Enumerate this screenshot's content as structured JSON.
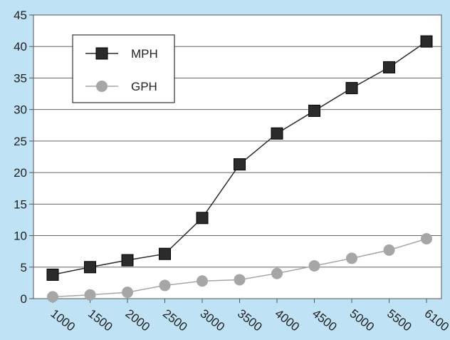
{
  "chart_data": {
    "type": "line",
    "x": [
      "1000",
      "1500",
      "2000",
      "2500",
      "3000",
      "3500",
      "4000",
      "4500",
      "5000",
      "5500",
      "6100"
    ],
    "series": [
      {
        "name": "MPH",
        "values": [
          3.8,
          5.0,
          6.1,
          7.1,
          12.8,
          21.3,
          26.2,
          29.8,
          33.4,
          36.7,
          40.8
        ],
        "color": "#2b2b2b",
        "marker": "square"
      },
      {
        "name": "GPH",
        "values": [
          0.3,
          0.6,
          1.0,
          2.1,
          2.8,
          3.0,
          4.0,
          5.2,
          6.4,
          7.7,
          9.5
        ],
        "color": "#a6a6a6",
        "marker": "circle"
      }
    ],
    "ylim": [
      0,
      45
    ],
    "yticks": [
      "0",
      "5",
      "10",
      "15",
      "20",
      "25",
      "30",
      "35",
      "40",
      "45"
    ],
    "grid": "horizontal",
    "legend_position": "top-left",
    "title": "",
    "xlabel": "",
    "ylabel": ""
  }
}
